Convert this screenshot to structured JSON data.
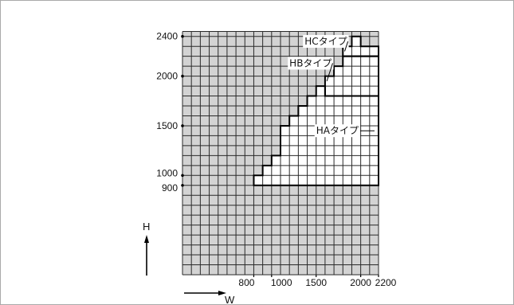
{
  "chart_data": {
    "type": "area",
    "title": "",
    "xlabel": "W",
    "ylabel": "H",
    "x_ticks": [
      800,
      1000,
      1500,
      2000,
      2200
    ],
    "y_ticks": [
      900,
      1000,
      1500,
      2000,
      2400
    ],
    "xlim": [
      0,
      2200
    ],
    "ylim": [
      0,
      2450
    ],
    "grid": true,
    "grid_step": 100,
    "colors": {
      "excluded": "#d3d3d3",
      "grid": "#2a2a2a",
      "included": "#ffffff",
      "boundary": "#000000"
    },
    "regions": [
      {
        "name": "HAタイプ",
        "label_position": [
          1500,
          1450
        ],
        "outline": [
          [
            800,
            900
          ],
          [
            800,
            1000
          ],
          [
            900,
            1000
          ],
          [
            900,
            1100
          ],
          [
            1000,
            1100
          ],
          [
            1000,
            1200
          ],
          [
            1100,
            1200
          ],
          [
            1100,
            1500
          ],
          [
            1200,
            1500
          ],
          [
            1200,
            1600
          ],
          [
            1300,
            1600
          ],
          [
            1300,
            1700
          ],
          [
            1400,
            1700
          ],
          [
            1400,
            1800
          ],
          [
            1500,
            1800
          ],
          [
            1500,
            1900
          ],
          [
            1600,
            1900
          ],
          [
            1600,
            1800
          ],
          [
            2200,
            1800
          ],
          [
            2200,
            900
          ]
        ]
      },
      {
        "name": "HBタイプ",
        "label_position": [
          1200,
          2130
        ],
        "pointer_to": [
          1620,
          1950
        ],
        "outline": [
          [
            1600,
            1900
          ],
          [
            1600,
            2000
          ],
          [
            1700,
            2000
          ],
          [
            1700,
            2100
          ],
          [
            1800,
            2100
          ],
          [
            1800,
            2200
          ],
          [
            2200,
            2200
          ],
          [
            2200,
            1800
          ],
          [
            1600,
            1800
          ]
        ]
      },
      {
        "name": "HCタイプ",
        "label_position": [
          1370,
          2350
        ],
        "pointer_to": [
          1820,
          2250
        ],
        "outline": [
          [
            1800,
            2200
          ],
          [
            1800,
            2300
          ],
          [
            1900,
            2300
          ],
          [
            1900,
            2400
          ],
          [
            2000,
            2400
          ],
          [
            2000,
            2300
          ],
          [
            2200,
            2300
          ],
          [
            2200,
            2200
          ]
        ]
      }
    ]
  }
}
